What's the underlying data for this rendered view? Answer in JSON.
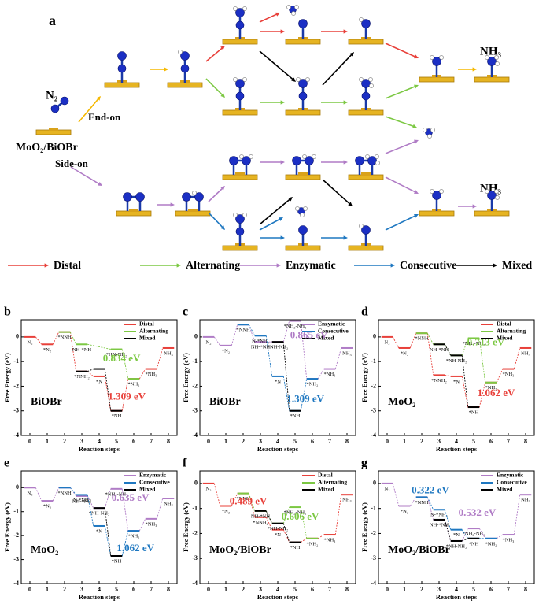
{
  "figure_a": {
    "label": "a",
    "n2": "N₂",
    "end_on": "End-on",
    "side_on": "Side-on",
    "substrate": "MoO₂/BiOBr",
    "product_top": "NH₃",
    "product_bottom": "NH₃",
    "legend": [
      {
        "name": "Distal",
        "color": "#e8403a"
      },
      {
        "name": "Alternating",
        "color": "#7cc843"
      },
      {
        "name": "Enzymatic",
        "color": "#b07cc6"
      },
      {
        "name": "Consecutive",
        "color": "#1f78c1"
      },
      {
        "name": "Mixed",
        "color": "#000000"
      }
    ]
  },
  "chart_data": [
    {
      "type": "step",
      "panel_label": "b",
      "material": "BiOBr",
      "xlabel": "Reaction steps",
      "ylabel": "Free Energy (eV)",
      "xlim": [
        -0.5,
        8.5
      ],
      "ylim": [
        -4,
        0.7
      ],
      "xticks": [
        0,
        1,
        2,
        3,
        4,
        5,
        6,
        7,
        8
      ],
      "yticks": [
        0,
        -1,
        -2,
        -3,
        -4
      ],
      "legend": "upper right",
      "series": [
        {
          "name": "Distal",
          "color": "#e8403a",
          "values": [
            0,
            -0.3,
            0.2,
            -1.4,
            -1.6,
            -3.0,
            -1.7,
            -1.3,
            -0.45
          ],
          "point_labels": [
            "N₂",
            "*N₂",
            "*NNH",
            "*NNH₂",
            "*N",
            "*NH",
            "*NH₂",
            "*NH₃",
            "NH₃"
          ]
        },
        {
          "name": "Alternating",
          "color": "#7cc843",
          "values": [
            null,
            null,
            0.2,
            -0.3,
            null,
            -0.5,
            -1.7,
            null,
            null
          ],
          "point_labels": [
            null,
            null,
            null,
            "NH-*NH",
            null,
            "*HN-NH₂",
            null,
            null,
            null
          ]
        },
        {
          "name": "Mixed",
          "color": "#000000",
          "values": [
            null,
            null,
            null,
            -1.4,
            -1.3,
            -3.0,
            null,
            null,
            null
          ],
          "point_labels": [
            null,
            null,
            null,
            null,
            null,
            null,
            null,
            null,
            null
          ]
        }
      ],
      "annotations": [
        {
          "text": "0.834 eV",
          "color": "#7cc843"
        },
        {
          "text": "1.309 eV",
          "color": "#e8403a"
        }
      ]
    },
    {
      "type": "step",
      "panel_label": "c",
      "material": "BiOBr",
      "xlabel": "Reaction steps",
      "ylabel": "Free Energy (eV)",
      "xlim": [
        -0.5,
        8.5
      ],
      "ylim": [
        -4,
        0.7
      ],
      "xticks": [
        0,
        1,
        2,
        3,
        4,
        5,
        6,
        7,
        8
      ],
      "yticks": [
        0,
        -1,
        -2,
        -3,
        -4
      ],
      "legend": "upper right",
      "series": [
        {
          "name": "Enzymatic",
          "color": "#b07cc6",
          "values": [
            0,
            -0.35,
            0.5,
            -0.2,
            -0.2,
            0.65,
            -1.7,
            -1.3,
            -0.45
          ],
          "point_labels": [
            "N₂",
            "*N₂",
            "*NNH",
            "NH-*NH",
            "*NH-NH₂",
            "*NH₂-NH₂",
            "*NH₂",
            "*NH₃",
            "NH₃"
          ]
        },
        {
          "name": "Consecutive",
          "color": "#1f78c1",
          "values": [
            null,
            null,
            0.5,
            0.05,
            -1.6,
            -3.0,
            -1.7,
            null,
            null
          ],
          "point_labels": [
            null,
            null,
            null,
            "N-*NH₂",
            "*N",
            "*NH",
            null,
            null,
            null
          ]
        },
        {
          "name": "Mixed",
          "color": "#000000",
          "values": [
            null,
            null,
            null,
            null,
            -0.2,
            -3.0,
            null,
            null,
            null
          ],
          "point_labels": [
            null,
            null,
            null,
            null,
            null,
            null,
            null,
            null,
            null
          ]
        }
      ],
      "annotations": [
        {
          "text": "0.865 eV",
          "color": "#b07cc6"
        },
        {
          "text": "1.309 eV",
          "color": "#1f78c1"
        }
      ]
    },
    {
      "type": "step",
      "panel_label": "d",
      "material": "MoO₂",
      "xlabel": "Reaction steps",
      "ylabel": "Free Energy (eV)",
      "xlim": [
        -0.5,
        8.5
      ],
      "ylim": [
        -4,
        0.7
      ],
      "xticks": [
        0,
        1,
        2,
        3,
        4,
        5,
        6,
        7,
        8
      ],
      "yticks": [
        0,
        -1,
        -2,
        -3,
        -4
      ],
      "legend": "upper right",
      "series": [
        {
          "name": "Distal",
          "color": "#e8403a",
          "values": [
            0,
            -0.45,
            0.15,
            -1.55,
            -1.6,
            -2.85,
            -1.85,
            -1.3,
            -0.45
          ],
          "point_labels": [
            "N₂",
            "*N₂",
            "*NNH",
            "*NNH₂",
            "*N",
            "*NH",
            "*NH₂",
            "*NH₃",
            "NH₃"
          ]
        },
        {
          "name": "Alternating",
          "color": "#7cc843",
          "values": [
            null,
            null,
            0.15,
            -0.3,
            -0.75,
            -0.05,
            -1.85,
            null,
            null
          ],
          "point_labels": [
            null,
            null,
            null,
            "NH-*NH",
            "*NH-NH₂",
            "*NH₂-NH₂",
            null,
            null,
            null
          ]
        },
        {
          "name": "Mixed",
          "color": "#000000",
          "values": [
            null,
            null,
            null,
            -0.3,
            -0.75,
            -2.85,
            null,
            null,
            null
          ],
          "point_labels": [
            null,
            null,
            null,
            null,
            null,
            null,
            null,
            null,
            null
          ]
        }
      ],
      "annotations": [
        {
          "text": "0.713 eV",
          "color": "#7cc843"
        },
        {
          "text": "1.062 eV",
          "color": "#e8403a"
        }
      ]
    },
    {
      "type": "step",
      "panel_label": "e",
      "material": "MoO₂",
      "xlabel": "Reaction steps",
      "ylabel": "Free Energy (eV)",
      "xlim": [
        -0.5,
        8.5
      ],
      "ylim": [
        -4,
        0.7
      ],
      "xticks": [
        0,
        1,
        2,
        3,
        4,
        5,
        6,
        7,
        8
      ],
      "yticks": [
        0,
        -1,
        -2,
        -3,
        -4
      ],
      "legend": "upper right",
      "series": [
        {
          "name": "Enzymatic",
          "color": "#b07cc6",
          "values": [
            0,
            -0.55,
            0.0,
            -0.35,
            -0.85,
            -0.05,
            -1.8,
            -1.3,
            -0.45
          ],
          "point_labels": [
            "N₂",
            "*N₂",
            "*NNH",
            "NH-*NH",
            "*NH-NH₂",
            "*NH₂-NH₂",
            "*NH₂",
            "*NH₃",
            "NH₃"
          ]
        },
        {
          "name": "Consecutive",
          "color": "#1f78c1",
          "values": [
            null,
            null,
            0.0,
            -0.3,
            -1.6,
            -2.85,
            -1.8,
            null,
            null
          ],
          "point_labels": [
            null,
            null,
            null,
            "N-*NH₂",
            "*N",
            "*NH",
            null,
            null,
            null
          ]
        },
        {
          "name": "Mixed",
          "color": "#000000",
          "values": [
            null,
            null,
            null,
            null,
            -0.85,
            -2.85,
            null,
            null,
            null
          ],
          "point_labels": [
            null,
            null,
            null,
            null,
            null,
            null,
            null,
            null,
            null
          ]
        }
      ],
      "annotations": [
        {
          "text": "0.635 eV",
          "color": "#b07cc6"
        },
        {
          "text": "1.062 eV",
          "color": "#1f78c1"
        }
      ]
    },
    {
      "type": "step",
      "panel_label": "f",
      "material": "MoO₂/BiOBr",
      "xlabel": "Reaction steps",
      "ylabel": "Free Energy (eV)",
      "xlim": [
        -0.5,
        8.5
      ],
      "ylim": [
        -4,
        0.5
      ],
      "xticks": [
        0,
        1,
        2,
        3,
        4,
        5,
        6,
        7,
        8
      ],
      "yticks": [
        0,
        -1,
        -2,
        -3,
        -4
      ],
      "legend": "upper right",
      "series": [
        {
          "name": "Distal",
          "color": "#e8403a",
          "values": [
            0,
            -0.9,
            -0.4,
            -1.35,
            -1.85,
            -2.35,
            -2.2,
            -2.05,
            -0.45
          ],
          "point_labels": [
            "N₂",
            "*N₂",
            "*NNH",
            "*NNH₂",
            "*N",
            "*NH",
            "*NH₂",
            "*NH₃",
            "NH₃"
          ]
        },
        {
          "name": "Alternating",
          "color": "#7cc843",
          "values": [
            null,
            null,
            -0.4,
            -1.1,
            -1.6,
            -0.95,
            -2.2,
            null,
            null
          ],
          "point_labels": [
            null,
            null,
            null,
            "NH-*NH",
            "*NH-NH₂",
            "*NH₂-NH₂",
            null,
            null,
            null
          ]
        },
        {
          "name": "Mixed",
          "color": "#000000",
          "values": [
            null,
            null,
            null,
            -1.1,
            -1.6,
            -2.35,
            null,
            null,
            null
          ],
          "point_labels": [
            null,
            null,
            null,
            null,
            null,
            null,
            null,
            null,
            null
          ]
        }
      ],
      "annotations": [
        {
          "text": "0.489 eV",
          "color": "#e8403a"
        },
        {
          "text": "0.606 eV",
          "color": "#7cc843"
        }
      ]
    },
    {
      "type": "step",
      "panel_label": "g",
      "material": "MoO₂/BiOBr",
      "xlabel": "Reaction steps",
      "ylabel": "Free Energy (eV)",
      "xlim": [
        -0.5,
        8.5
      ],
      "ylim": [
        -4,
        0.5
      ],
      "xticks": [
        0,
        1,
        2,
        3,
        4,
        5,
        6,
        7,
        8
      ],
      "yticks": [
        0,
        -1,
        -2,
        -3,
        -4
      ],
      "legend": "upper right",
      "series": [
        {
          "name": "Enzymatic",
          "color": "#b07cc6",
          "values": [
            0,
            -0.9,
            -0.55,
            -1.45,
            -2.3,
            -1.8,
            -2.2,
            -2.05,
            -0.45
          ],
          "point_labels": [
            "N₂",
            "*N₂",
            "*NNH",
            "NH-*NH",
            "*NH-NH₂",
            "*NH₂-NH₂",
            "*NH₂",
            "*NH₃",
            "NH₃"
          ]
        },
        {
          "name": "Consecutive",
          "color": "#1f78c1",
          "values": [
            null,
            null,
            -0.55,
            -1.05,
            -1.85,
            -2.2,
            -2.2,
            null,
            null
          ],
          "point_labels": [
            null,
            null,
            null,
            "N-*NH₂",
            "*N",
            "*NH",
            null,
            null,
            null
          ]
        },
        {
          "name": "Mixed",
          "color": "#000000",
          "values": [
            null,
            null,
            null,
            -1.45,
            -2.3,
            -2.2,
            null,
            null,
            null
          ],
          "point_labels": [
            null,
            null,
            null,
            null,
            null,
            null,
            null,
            null,
            null
          ]
        }
      ],
      "annotations": [
        {
          "text": "0.322 eV",
          "color": "#1f78c1"
        },
        {
          "text": "0.532 eV",
          "color": "#b07cc6"
        }
      ]
    }
  ]
}
